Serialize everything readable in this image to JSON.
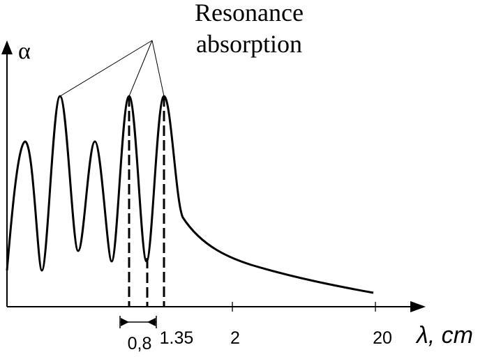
{
  "chart_data": {
    "type": "line",
    "title": "",
    "ylabel": "α",
    "xlabel": "λ, cm",
    "x_ticks": [
      "0,8",
      "1.35",
      "2",
      "20"
    ],
    "annotation": [
      "Resonance",
      "absorption"
    ],
    "grid": false,
    "legend": "none",
    "line_color": "#000000",
    "series": [
      {
        "points": [
          [
            0.0,
            0.1
          ],
          [
            0.1,
            0.72
          ],
          [
            0.2,
            0.1
          ],
          [
            0.3,
            1.0
          ],
          [
            0.4,
            0.1
          ],
          [
            0.5,
            0.72
          ],
          [
            0.6,
            0.1
          ],
          [
            0.8,
            1.0
          ],
          [
            1.0,
            0.1
          ],
          [
            1.35,
            1.0
          ],
          [
            2.0,
            0.3
          ],
          [
            6.0,
            0.18
          ],
          [
            12.0,
            0.12
          ],
          [
            20.0,
            0.09
          ]
        ]
      }
    ]
  }
}
